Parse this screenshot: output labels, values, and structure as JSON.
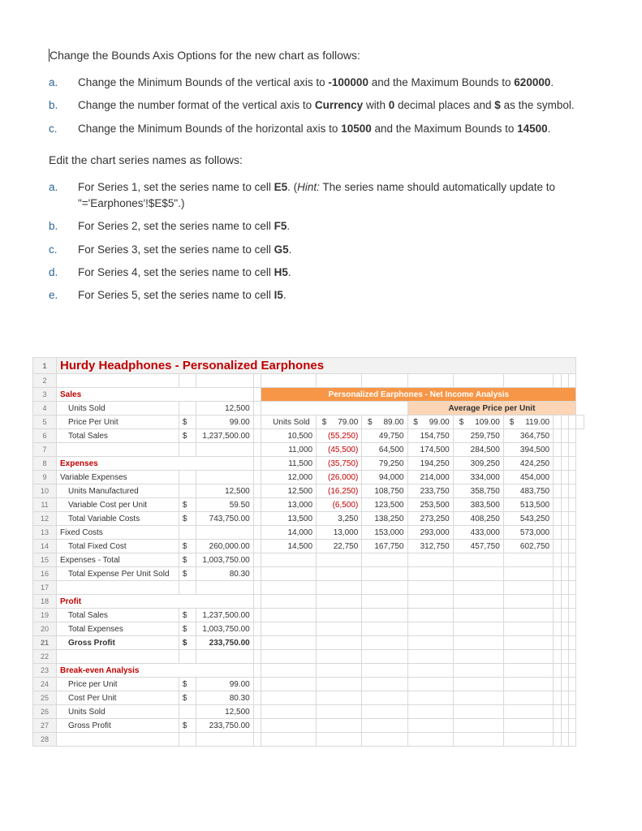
{
  "intro1": "Change the Bounds Axis Options for the new chart as follows:",
  "s1": {
    "a": {
      "l": "a.",
      "t": [
        "Change the Minimum Bounds of the vertical axis to ",
        "-100000",
        " and the Maximum Bounds to ",
        "620000",
        "."
      ]
    },
    "b": {
      "l": "b.",
      "t": [
        "Change the number format of the vertical axis to ",
        "Currency",
        " with ",
        "0",
        " decimal places and ",
        "$",
        " as the symbol."
      ]
    },
    "c": {
      "l": "c.",
      "t": [
        "Change the Minimum Bounds of the horizontal axis to ",
        "10500",
        " and the Maximum Bounds to ",
        "14500",
        "."
      ]
    }
  },
  "intro2": "Edit the chart series names as follows:",
  "s2": {
    "a": {
      "l": "a.",
      "pre": "For Series 1, set the series name to cell ",
      "cell": "E5",
      "post": ". (",
      "hint": "Hint:",
      "rest": " The series name should automatically update to \"='Earphones'!$E$5\".)"
    },
    "b": {
      "l": "b.",
      "pre": "For Series 2, set the series name to cell ",
      "cell": "F5",
      "post": "."
    },
    "c": {
      "l": "c.",
      "pre": "For Series 3, set the series name to cell ",
      "cell": "G5",
      "post": "."
    },
    "d": {
      "l": "d.",
      "pre": "For Series 4, set the series name to cell ",
      "cell": "H5",
      "post": "."
    },
    "e": {
      "l": "e.",
      "pre": "For Series 5, set the series name to cell ",
      "cell": "I5",
      "post": "."
    }
  },
  "sheetTitle": "Hurdy Headphones - Personalized Earphones",
  "analysisHeader": "Personalized Earphones - Net Income Analysis",
  "avgPriceHeader": "Average Price per Unit",
  "prices": [
    "79.00",
    "89.00",
    "99.00",
    "109.00",
    "119.00"
  ],
  "left": {
    "r3": "Sales",
    "r4": {
      "label": "Units Sold",
      "val": "12,500"
    },
    "r5": {
      "label": "Price Per Unit",
      "sym": "$",
      "val": "99.00"
    },
    "r6": {
      "label": "Total Sales",
      "sym": "$",
      "val": "1,237,500.00"
    },
    "r8": "Expenses",
    "r9": "Variable Expenses",
    "r10": {
      "label": "Units Manufactured",
      "val": "12,500"
    },
    "r11": {
      "label": "Variable Cost per Unit",
      "sym": "$",
      "val": "59.50"
    },
    "r12": {
      "label": "Total Variable Costs",
      "sym": "$",
      "val": "743,750.00"
    },
    "r13": "Fixed Costs",
    "r14": {
      "label": "Total Fixed Cost",
      "sym": "$",
      "val": "260,000.00"
    },
    "r15": {
      "label": "Expenses - Total",
      "sym": "$",
      "val": "1,003,750.00"
    },
    "r16": {
      "label": "Total Expense Per Unit Sold",
      "sym": "$",
      "val": "80.30"
    },
    "r18": "Profit",
    "r19": {
      "label": "Total Sales",
      "sym": "$",
      "val": "1,237,500.00"
    },
    "r20": {
      "label": "Total Expenses",
      "sym": "$",
      "val": "1,003,750.00"
    },
    "r21": {
      "label": "Gross Profit",
      "sym": "$",
      "val": "233,750.00"
    },
    "r23": "Break-even Analysis",
    "r24": {
      "label": "Price per Unit",
      "sym": "$",
      "val": "99.00"
    },
    "r25": {
      "label": "Cost Per Unit",
      "sym": "$",
      "val": "80.30"
    },
    "r26": {
      "label": "Units Sold",
      "val": "12,500"
    },
    "r27": {
      "label": "Gross Profit",
      "sym": "$",
      "val": "233,750.00"
    }
  },
  "unitsSoldLabel": "Units Sold",
  "matrix": [
    {
      "u": "10,500",
      "v": [
        "(55,250)",
        "49,750",
        "154,750",
        "259,750",
        "364,750"
      ],
      "neg": [
        true,
        false,
        false,
        false,
        false
      ]
    },
    {
      "u": "11,000",
      "v": [
        "(45,500)",
        "64,500",
        "174,500",
        "284,500",
        "394,500"
      ],
      "neg": [
        true,
        false,
        false,
        false,
        false
      ]
    },
    {
      "u": "11,500",
      "v": [
        "(35,750)",
        "79,250",
        "194,250",
        "309,250",
        "424,250"
      ],
      "neg": [
        true,
        false,
        false,
        false,
        false
      ]
    },
    {
      "u": "12,000",
      "v": [
        "(26,000)",
        "94,000",
        "214,000",
        "334,000",
        "454,000"
      ],
      "neg": [
        true,
        false,
        false,
        false,
        false
      ]
    },
    {
      "u": "12,500",
      "v": [
        "(16,250)",
        "108,750",
        "233,750",
        "358,750",
        "483,750"
      ],
      "neg": [
        true,
        false,
        false,
        false,
        false
      ]
    },
    {
      "u": "13,000",
      "v": [
        "(6,500)",
        "123,500",
        "253,500",
        "383,500",
        "513,500"
      ],
      "neg": [
        true,
        false,
        false,
        false,
        false
      ]
    },
    {
      "u": "13,500",
      "v": [
        "3,250",
        "138,250",
        "273,250",
        "408,250",
        "543,250"
      ],
      "neg": [
        false,
        false,
        false,
        false,
        false
      ]
    },
    {
      "u": "14,000",
      "v": [
        "13,000",
        "153,000",
        "293,000",
        "433,000",
        "573,000"
      ],
      "neg": [
        false,
        false,
        false,
        false,
        false
      ]
    },
    {
      "u": "14,500",
      "v": [
        "22,750",
        "167,750",
        "312,750",
        "457,750",
        "602,750"
      ],
      "neg": [
        false,
        false,
        false,
        false,
        false
      ]
    }
  ]
}
